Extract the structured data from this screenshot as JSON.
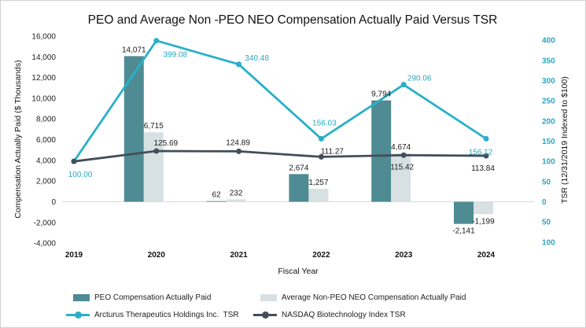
{
  "chart_data": {
    "type": "combo-bar-line",
    "title": "PEO and Average Non -PEO NEO Compensation Actually Paid Versus TSR",
    "categories": [
      "2019",
      "2020",
      "2021",
      "2022",
      "2023",
      "2024"
    ],
    "xlabel": "Fiscal Year",
    "left_axis": {
      "label": "Compensation Actually Paid ($ Thousands)",
      "min": -4000,
      "max": 16000,
      "tick_step": 2000,
      "tick_labels": [
        "16,000",
        "14,000",
        "12,000",
        "10,000",
        "8,000",
        "6,000",
        "4,000",
        "2,000",
        "0",
        "-2,000",
        "-4,000"
      ]
    },
    "right_axis": {
      "label": "TSR (12/31/2019 Indexed to $100)",
      "min": -100,
      "max": 400,
      "tick_step": 50,
      "tick_labels": [
        "400",
        "350",
        "300",
        "250",
        "200",
        "150",
        "100",
        "50",
        "0",
        "50",
        "100"
      ]
    },
    "bar_series": [
      {
        "name": "PEO Compensation Actually Paid",
        "color": "#4f8b93",
        "values": [
          null,
          14071,
          62,
          2674,
          9794,
          -2141
        ],
        "labels": [
          null,
          "14,071",
          "62",
          "2,674",
          "9,794",
          "-2,141"
        ]
      },
      {
        "name": "Average Non-PEO NEO Compensation Actually Paid",
        "color": "#d7e1e3",
        "values": [
          null,
          6715,
          232,
          1257,
          4674,
          -1199
        ],
        "labels": [
          null,
          "6,715",
          "232",
          "1,257",
          "4,674",
          "-1,199"
        ]
      }
    ],
    "line_series": [
      {
        "name": "Arcturus Therapeutics Holdings Inc.  TSR",
        "color": "#29b0c7",
        "values": [
          100.0,
          399.08,
          340.48,
          156.03,
          290.06,
          156.12
        ],
        "labels": [
          "100.00",
          "399.08",
          "340.48",
          "156.03",
          "290.06",
          "156.12"
        ]
      },
      {
        "name": "NASDAQ Biotechnology Index TSR",
        "color": "#434e58",
        "values": [
          100.0,
          125.69,
          124.89,
          111.27,
          115.42,
          113.84
        ],
        "labels": [
          null,
          "125.69",
          "124.89",
          "111.27",
          "115.42",
          "113.84"
        ]
      }
    ],
    "gridlines": "zero-line-only",
    "legend_position": "bottom"
  }
}
